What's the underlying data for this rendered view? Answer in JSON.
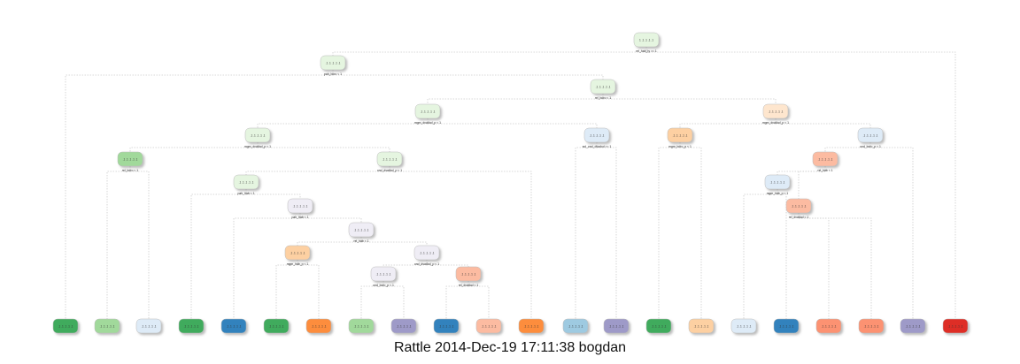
{
  "caption": "Rattle 2014-Dec-19 17:11:38 bogdan",
  "palette": {
    "green": "#41ab5d",
    "light_green": "#a1d99b",
    "pale_green": "#e5f5e0",
    "blue": "#3182bd",
    "light_blue": "#9ecae1",
    "pale_blue": "#deebf7",
    "orange": "#fd8d3c",
    "light_orange": "#fdd0a2",
    "pale_orange": "#fee6ce",
    "purple": "#9e9ac8",
    "pale_purple": "#efedf5",
    "red": "#de2d26",
    "salmon": "#fc9272",
    "pale_salmon": "#fcbba1",
    "edge": "#cccccc"
  },
  "tree": {
    "internal_nodes": [
      {
        "id": "n1",
        "fill": "pale_green",
        "values": "1 .1 .1 .1 .1",
        "split": "rel_hab_ty >= 1"
      },
      {
        "id": "n2",
        "fill": "pale_green",
        "values": ".1 .1 .1 .1 .1",
        "split": "pah_boro < 1"
      },
      {
        "id": "n3",
        "fill": "pale_green",
        "values": ".1 .1 .1 .1 .1",
        "split": "rel_boro < 1"
      },
      {
        "id": "n4",
        "fill": "pale_green",
        "values": ".1 .1 .1 .1 .1",
        "split": "mgm_dvadod_p < 1"
      },
      {
        "id": "n5",
        "fill": "pale_orange",
        "values": ".1 .1 .1 .1 .1",
        "split": "mgm_dvadod_p < 1"
      },
      {
        "id": "n6",
        "fill": "pale_green",
        "values": ".1 .1 .1 .1 .1",
        "split": "mgm_dvadod_p < 1"
      },
      {
        "id": "n7",
        "fill": "pale_blue",
        "values": ".1 .1 .1 .1 .1",
        "split": "sol_ond_dvadod >= 1"
      },
      {
        "id": "n8",
        "fill": "light_orange",
        "values": ".1 .1 .1 .1 .1",
        "split": "mgm_boro_p < 1"
      },
      {
        "id": "n9",
        "fill": "pale_blue",
        "values": ".1 .1 .1 .1 .1",
        "split": "ond_boro_p < 1"
      },
      {
        "id": "n10",
        "fill": "light_green",
        "values": ".1 .1 .1 .1 .1",
        "split": "rel_boro < 1"
      },
      {
        "id": "n11",
        "fill": "pale_green",
        "values": ".1 .1 .1 .1 .1",
        "split": "ond_dvadod_p < 1"
      },
      {
        "id": "n12",
        "fill": "pale_salmon",
        "values": ".1 .1 .1 .1 .1",
        "split": "rel_hab < 1"
      },
      {
        "id": "n13",
        "fill": "pale_green",
        "values": ".1 .1 .1 .1 .1",
        "split": "pah_hab < 1"
      },
      {
        "id": "n14",
        "fill": "pale_blue",
        "values": ".1 .1 .1 .1 .1",
        "split": "mgm_hab_p < 1"
      },
      {
        "id": "n15",
        "fill": "pale_purple",
        "values": ".1 .1 .1 .1 .1",
        "split": "pah_hab < 1"
      },
      {
        "id": "n16",
        "fill": "pale_salmon",
        "values": ".1 .1 .1 .1 .1",
        "split": "rel_dvadod < 1"
      },
      {
        "id": "n17",
        "fill": "pale_purple",
        "values": ".1 .1 .1 .1 .1",
        "split": "rel_hab < 1"
      },
      {
        "id": "n18",
        "fill": "light_orange",
        "values": ".1 .1 .1 .1 .1",
        "split": "mgm_hab_p < 1"
      },
      {
        "id": "n19",
        "fill": "pale_purple",
        "values": ".1 .1 .1 .1 .1",
        "split": "ond_dvadod_p < 1"
      },
      {
        "id": "n20",
        "fill": "pale_purple",
        "values": ".1 .1 .1 .1 .1",
        "split": "ond_boro_p < 1"
      },
      {
        "id": "n21",
        "fill": "pale_salmon",
        "values": ".1 .1 .1 .1 .1",
        "split": "rel_dvadod < 1"
      }
    ],
    "leaves": [
      {
        "id": "l1",
        "fill": "green",
        "values": ".1 .1 .1 .1 .1"
      },
      {
        "id": "l2",
        "fill": "light_green",
        "values": ".1 .1 .1 .1 .1"
      },
      {
        "id": "l3",
        "fill": "pale_blue",
        "values": ".1 .1 .1 .1 .1"
      },
      {
        "id": "l4",
        "fill": "green",
        "values": ".1 .1 .1 .1 .1"
      },
      {
        "id": "l5",
        "fill": "blue",
        "values": ".1 .1 .1 .1 .1"
      },
      {
        "id": "l6",
        "fill": "green",
        "values": ".1 .1 .1 .1 .1"
      },
      {
        "id": "l7",
        "fill": "orange",
        "values": ".1 .1 .1 .1 .1"
      },
      {
        "id": "l8",
        "fill": "light_green",
        "values": ".1 .1 .1 .1 .1"
      },
      {
        "id": "l9",
        "fill": "purple",
        "values": ".1 .1 .1 .1 .1"
      },
      {
        "id": "l10",
        "fill": "blue",
        "values": ".1 .1 .1 .1 .1"
      },
      {
        "id": "l11",
        "fill": "pale_salmon",
        "values": ".1 .1 .1 .1 .1"
      },
      {
        "id": "l12",
        "fill": "orange",
        "values": ".1 .1 .1 .1 .1"
      },
      {
        "id": "l13",
        "fill": "light_blue",
        "values": ".1 .1 .1 .1 .1"
      },
      {
        "id": "l14",
        "fill": "purple",
        "values": ".1 .1 .1 .1 .1"
      },
      {
        "id": "l15",
        "fill": "green",
        "values": ".1 .1 .1 .1 .1"
      },
      {
        "id": "l16",
        "fill": "light_orange",
        "values": ".1 .1 .1 .1 .1"
      },
      {
        "id": "l17",
        "fill": "pale_blue",
        "values": ".1 .1 .1 .1 .1"
      },
      {
        "id": "l18",
        "fill": "blue",
        "values": ".1 .1 .1 .1 .1"
      },
      {
        "id": "l19",
        "fill": "salmon",
        "values": ".1 .1 .1 .1 .1"
      },
      {
        "id": "l20",
        "fill": "salmon",
        "values": ".1 .1 .1 .1 .1"
      },
      {
        "id": "l21",
        "fill": "purple",
        "values": ".1 .1 .1 .1 .1"
      },
      {
        "id": "l22",
        "fill": "red",
        "values": ".1 .1 .1 .1 .1"
      }
    ]
  }
}
